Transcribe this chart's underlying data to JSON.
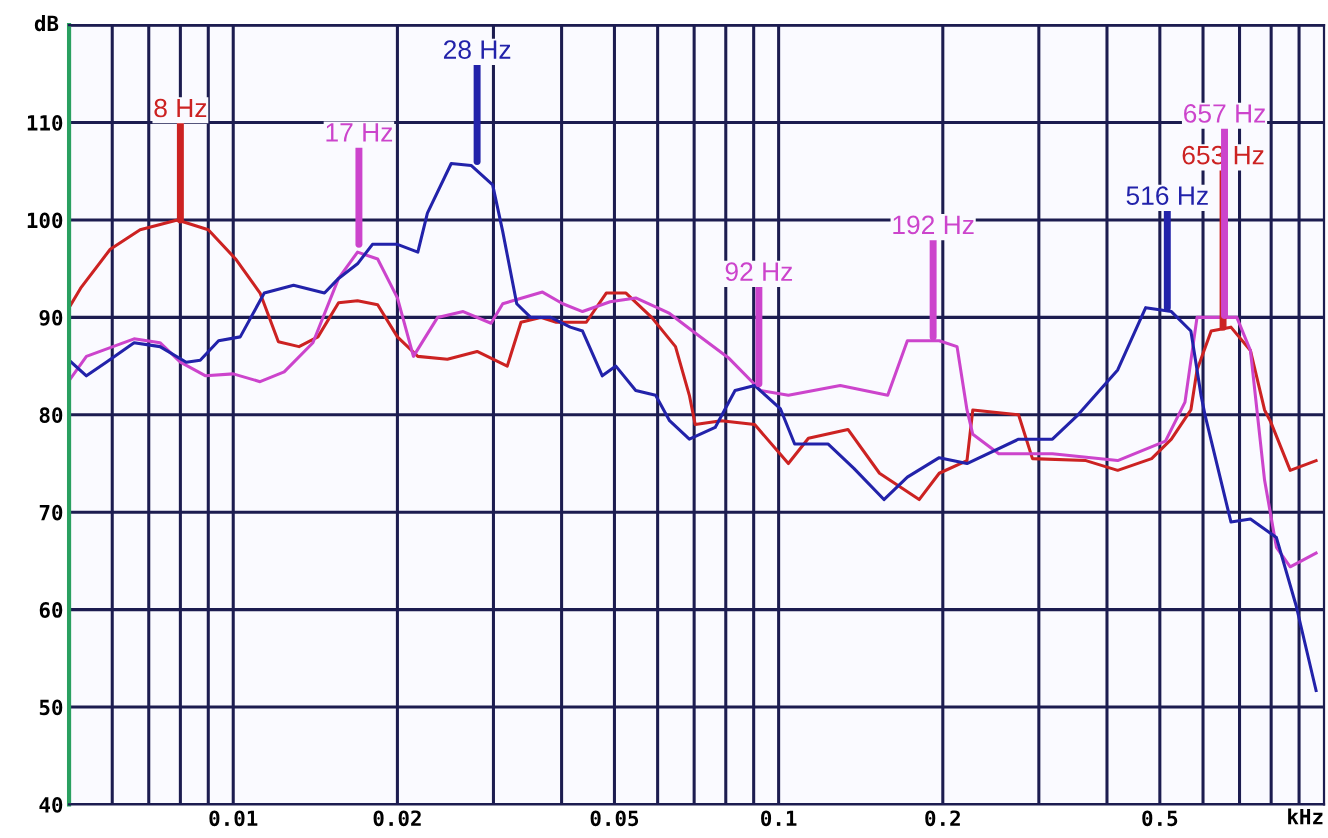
{
  "chart_data": {
    "type": "line",
    "xlabel": "kHz",
    "ylabel": "dB",
    "log": "x",
    "grid": true,
    "legend": false,
    "marker": "none",
    "line_style": "solid",
    "xlim": [
      0.005,
      1
    ],
    "ylim": [
      40,
      120
    ],
    "xticks": [
      {
        "value": 0.006,
        "label": null
      },
      {
        "value": 0.007,
        "label": null
      },
      {
        "value": 0.008,
        "label": null
      },
      {
        "value": 0.009,
        "label": null
      },
      0.01,
      0.02,
      {
        "value": 0.03,
        "label": null
      },
      {
        "value": 0.04,
        "label": null
      },
      0.05,
      {
        "value": 0.06,
        "label": null
      },
      {
        "value": 0.07,
        "label": null
      },
      {
        "value": 0.08,
        "label": null
      },
      {
        "value": 0.09,
        "label": null
      },
      0.1,
      0.2,
      {
        "value": 0.3,
        "label": null
      },
      {
        "value": 0.4,
        "label": null
      },
      0.5,
      {
        "value": 0.6,
        "label": null
      },
      {
        "value": 0.7,
        "label": null
      },
      {
        "value": 0.8,
        "label": null
      },
      {
        "value": 0.9,
        "label": null
      }
    ],
    "yticks": [
      40,
      50,
      60,
      70,
      80,
      90,
      100,
      110,
      {
        "value": 120,
        "label": null
      }
    ],
    "series": [
      {
        "color": "#cc2222",
        "x": [
          0.005,
          0.00525,
          0.00595,
          0.00675,
          0.0079,
          0.009,
          0.0101,
          0.0112,
          0.0121,
          0.0132,
          0.0143,
          0.0156,
          0.0169,
          0.0184,
          0.02,
          0.0218,
          0.0247,
          0.028,
          0.0318,
          0.0337,
          0.0366,
          0.0391,
          0.0444,
          0.0483,
          0.0525,
          0.0585,
          0.0647,
          0.0686,
          0.0703,
          0.0785,
          0.0904,
          0.1042,
          0.1134,
          0.134,
          0.1531,
          0.181,
          0.197,
          0.2215,
          0.227,
          0.2754,
          0.292,
          0.366,
          0.4185,
          0.483,
          0.525,
          0.57,
          0.585,
          0.621,
          0.675,
          0.733,
          0.778,
          0.798,
          0.867,
          0.967
        ],
        "values": [
          91,
          93,
          97,
          99,
          100,
          99,
          96,
          92.5,
          87.5,
          87,
          88,
          91.5,
          91.7,
          91.3,
          88,
          86,
          85.7,
          86.5,
          85,
          89.5,
          90,
          89.5,
          89.5,
          92.5,
          92.5,
          90,
          87,
          82,
          79,
          79.4,
          79,
          75,
          77.6,
          78.5,
          74,
          71.3,
          74,
          75.3,
          80.5,
          80,
          75.5,
          75.3,
          74.3,
          75.5,
          77.5,
          80.5,
          84.6,
          88.6,
          89,
          86.6,
          80.5,
          79.3,
          74.3,
          75.3
        ]
      },
      {
        "color": "#cc44cc",
        "x": [
          0.005,
          0.00538,
          0.00658,
          0.00734,
          0.008,
          0.0089,
          0.01,
          0.0112,
          0.0124,
          0.014,
          0.0156,
          0.0169,
          0.0184,
          0.02,
          0.0214,
          0.0237,
          0.0264,
          0.0297,
          0.0312,
          0.0369,
          0.0402,
          0.0437,
          0.0491,
          0.0547,
          0.061,
          0.0631,
          0.0703,
          0.0811,
          0.0927,
          0.1042,
          0.1297,
          0.1585,
          0.1722,
          0.197,
          0.2124,
          0.2215,
          0.227,
          0.2533,
          0.3177,
          0.4185,
          0.512,
          0.556,
          0.585,
          0.692,
          0.733,
          0.778,
          0.818,
          0.867,
          0.967
        ],
        "values": [
          83.5,
          86,
          87.8,
          87.4,
          85.4,
          84,
          84.2,
          83.4,
          84.4,
          87.4,
          94,
          96.7,
          96,
          92,
          86,
          90,
          90.6,
          89.4,
          91.4,
          92.6,
          91.4,
          90.6,
          91.6,
          92,
          90.8,
          90.4,
          88.4,
          85.8,
          82.5,
          82,
          83,
          82,
          87.6,
          87.6,
          87,
          80.5,
          78,
          76,
          76,
          75.3,
          77.3,
          81.3,
          90,
          90,
          86.6,
          73.3,
          66.4,
          64.4,
          65.8
        ]
      },
      {
        "color": "#2222aa",
        "x": [
          0.005,
          0.00538,
          0.00585,
          0.00658,
          0.00734,
          0.0082,
          0.0087,
          0.0094,
          0.0103,
          0.0114,
          0.0129,
          0.0147,
          0.0156,
          0.0169,
          0.018,
          0.02,
          0.0218,
          0.0227,
          0.0251,
          0.0273,
          0.0299,
          0.0312,
          0.0331,
          0.0351,
          0.0382,
          0.0415,
          0.0437,
          0.0475,
          0.0503,
          0.0547,
          0.0595,
          0.0631,
          0.0686,
          0.0765,
          0.0832,
          0.0904,
          0.1008,
          0.107,
          0.1233,
          0.1374,
          0.156,
          0.1722,
          0.197,
          0.2215,
          0.2754,
          0.3177,
          0.354,
          0.4185,
          0.471,
          0.525,
          0.57,
          0.595,
          0.605,
          0.675,
          0.733,
          0.818,
          0.889,
          0.967
        ],
        "values": [
          85.6,
          84,
          85.4,
          87.4,
          87,
          85.4,
          85.6,
          87.6,
          88,
          92.5,
          93.3,
          92.5,
          94,
          95.5,
          97.5,
          97.5,
          96.7,
          100.7,
          105.8,
          105.6,
          103.6,
          98.8,
          91.4,
          90,
          90,
          89,
          88.6,
          84,
          85,
          82.5,
          82,
          79.4,
          77.5,
          78.7,
          82.5,
          83,
          80.6,
          77,
          77,
          74.5,
          71.3,
          73.6,
          75.6,
          75,
          77.5,
          77.5,
          80,
          84.6,
          91,
          90.6,
          88.6,
          82,
          80,
          69,
          69.3,
          67.4,
          60.4,
          51.7
        ]
      }
    ],
    "annotations": [
      {
        "text": "8 Hz",
        "x": 0.008,
        "y": 100
      },
      {
        "text": "17 Hz",
        "x": 0.017,
        "y": 97.5
      },
      {
        "text": "28 Hz",
        "x": 0.028,
        "y": 106
      },
      {
        "text": "92 Hz",
        "x": 0.092,
        "y": 83.2
      },
      {
        "text": "192 Hz",
        "x": 0.192,
        "y": 88
      },
      {
        "text": "516 Hz",
        "x": 0.516,
        "y": 91
      },
      {
        "text": "653 Hz",
        "x": 0.653,
        "y": 89
      },
      {
        "text": "657 Hz",
        "x": 0.657,
        "y": 90.2
      }
    ]
  }
}
